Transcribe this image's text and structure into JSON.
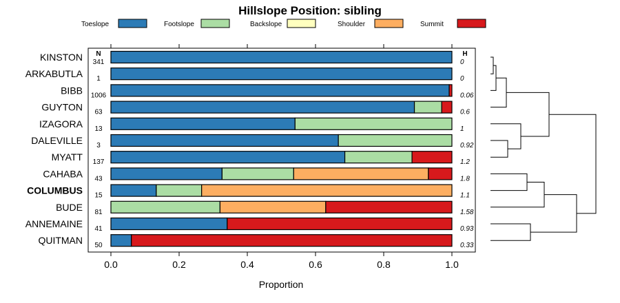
{
  "chart_data": {
    "type": "bar",
    "subtype": "stacked-horizontal-proportion",
    "title": "Hillslope Position: sibling",
    "xlabel": "Proportion",
    "xlim": [
      0,
      1
    ],
    "xticks": [
      "0.0",
      "0.2",
      "0.4",
      "0.6",
      "0.8",
      "1.0"
    ],
    "legend_position": "top",
    "n_header": "N",
    "h_header": "H",
    "series": [
      {
        "name": "Toeslope",
        "color": "#2c7bb6"
      },
      {
        "name": "Footslope",
        "color": "#abdda4"
      },
      {
        "name": "Backslope",
        "color": "#ffffbf"
      },
      {
        "name": "Shoulder",
        "color": "#fdae61"
      },
      {
        "name": "Summit",
        "color": "#d7191c"
      }
    ],
    "rows": [
      {
        "name": "KINSTON",
        "n": "341",
        "h": "0",
        "bold": false,
        "values": [
          1.0,
          0,
          0,
          0,
          0
        ]
      },
      {
        "name": "ARKABUTLA",
        "n": "1",
        "h": "0",
        "bold": false,
        "values": [
          1.0,
          0,
          0,
          0,
          0
        ]
      },
      {
        "name": "BIBB",
        "n": "1006",
        "h": "0.06",
        "bold": false,
        "values": [
          0.992,
          0,
          0,
          0,
          0.008
        ]
      },
      {
        "name": "GUYTON",
        "n": "63",
        "h": "0.6",
        "bold": false,
        "values": [
          0.89,
          0.08,
          0,
          0,
          0.03
        ]
      },
      {
        "name": "IZAGORA",
        "n": "13",
        "h": "1",
        "bold": false,
        "values": [
          0.54,
          0.46,
          0,
          0,
          0
        ]
      },
      {
        "name": "DALEVILLE",
        "n": "3",
        "h": "0.92",
        "bold": false,
        "values": [
          0.667,
          0.333,
          0,
          0,
          0
        ]
      },
      {
        "name": "MYATT",
        "n": "137",
        "h": "1.2",
        "bold": false,
        "values": [
          0.686,
          0.197,
          0,
          0,
          0.117
        ]
      },
      {
        "name": "CAHABA",
        "n": "43",
        "h": "1.8",
        "bold": false,
        "values": [
          0.326,
          0.21,
          0,
          0.395,
          0.069
        ]
      },
      {
        "name": "COLUMBUS",
        "n": "15",
        "h": "1.1",
        "bold": true,
        "values": [
          0.133,
          0.133,
          0,
          0.734,
          0
        ]
      },
      {
        "name": "BUDE",
        "n": "81",
        "h": "1.58",
        "bold": false,
        "values": [
          0,
          0.32,
          0,
          0.31,
          0.37
        ]
      },
      {
        "name": "ANNEMAINE",
        "n": "41",
        "h": "0.93",
        "bold": false,
        "values": [
          0.341,
          0,
          0,
          0,
          0.659
        ]
      },
      {
        "name": "QUITMAN",
        "n": "50",
        "h": "0.33",
        "bold": false,
        "values": [
          0.06,
          0,
          0,
          0,
          0.94
        ]
      }
    ]
  }
}
